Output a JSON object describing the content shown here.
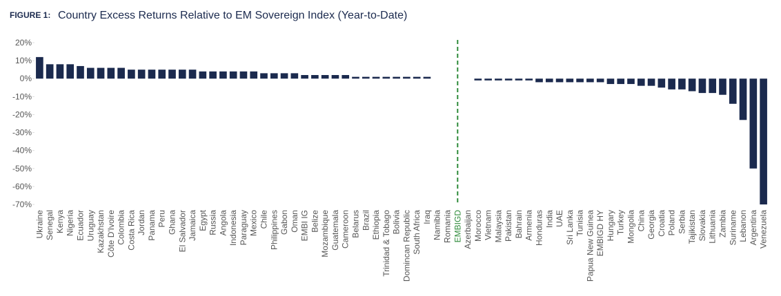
{
  "chart_data": {
    "type": "bar",
    "figure_label": "FIGURE 1:",
    "title": "Country Excess Returns Relative to EM Sovereign Index (Year-to-Date)",
    "categories": [
      "Ukraine",
      "Senegal",
      "Kenya",
      "Nigeria",
      "Ecuador",
      "Uruguay",
      "Kazakhstan",
      "Côte D'Ivoire",
      "Colombia",
      "Costa Rica",
      "Jordan",
      "Panama",
      "Peru",
      "Ghana",
      "El Salvador",
      "Jamaica",
      "Egypt",
      "Russia",
      "Angola",
      "Indonesia",
      "Paraguay",
      "Mexico",
      "Chile",
      "Philippines",
      "Gabon",
      "Oman",
      "EMBI IG",
      "Belize",
      "Mozambique",
      "Guatemala",
      "Cameroon",
      "Belarus",
      "Brazil",
      "Ethiopia",
      "Trinidad & Tobago",
      "Bolivia",
      "Domincan Republic",
      "South Africa",
      "Iraq",
      "Namibia",
      "Romania",
      "EMBIGD",
      "Azerbaijan",
      "Morocco",
      "Vietnam",
      "Malaysia",
      "Pakistan",
      "Bahrain",
      "Armenia",
      "Honduras",
      "India",
      "UAE",
      "Sri Lanka",
      "Tunisia",
      "Papua New Guinea",
      "EMBIGD HY",
      "Hungary",
      "Turkey",
      "Mongolia",
      "China",
      "Georgia",
      "Croatia",
      "Poland",
      "Serbia",
      "Tajikistan",
      "Slovakia",
      "Lithuania",
      "Zambia",
      "Suriname",
      "Lebanon",
      "Argentina",
      "Venezuela"
    ],
    "values": [
      12,
      8,
      8,
      8,
      7,
      6,
      6,
      6,
      6,
      5,
      5,
      5,
      5,
      5,
      5,
      5,
      4,
      4,
      4,
      4,
      4,
      4,
      3,
      3,
      3,
      3,
      2,
      2,
      2,
      2,
      2,
      1,
      1,
      1,
      1,
      1,
      1,
      1,
      1,
      0,
      0,
      0,
      0,
      -1,
      -1,
      -1,
      -1,
      -1,
      -1,
      -2,
      -2,
      -2,
      -2,
      -2,
      -2,
      -2,
      -3,
      -3,
      -3,
      -4,
      -4,
      -5,
      -6,
      -6,
      -7,
      -8,
      -8,
      -9,
      -14,
      -23,
      -50,
      -70
    ],
    "color": "#1b2a4e",
    "reference_index": 41,
    "reference_color": "#2e8b3a",
    "ylim": [
      -70,
      20
    ],
    "yticks": [
      {
        "value": 20,
        "label": "20%"
      },
      {
        "value": 10,
        "label": "10%"
      },
      {
        "value": 0,
        "label": "0%"
      },
      {
        "value": -10,
        "label": "-10%"
      },
      {
        "value": -20,
        "label": "-20%"
      },
      {
        "value": -30,
        "label": "-30%"
      },
      {
        "value": -40,
        "label": "-40%"
      },
      {
        "value": -50,
        "label": "-50%"
      },
      {
        "value": -60,
        "label": "-60%"
      },
      {
        "value": -70,
        "label": "-70%"
      }
    ]
  }
}
